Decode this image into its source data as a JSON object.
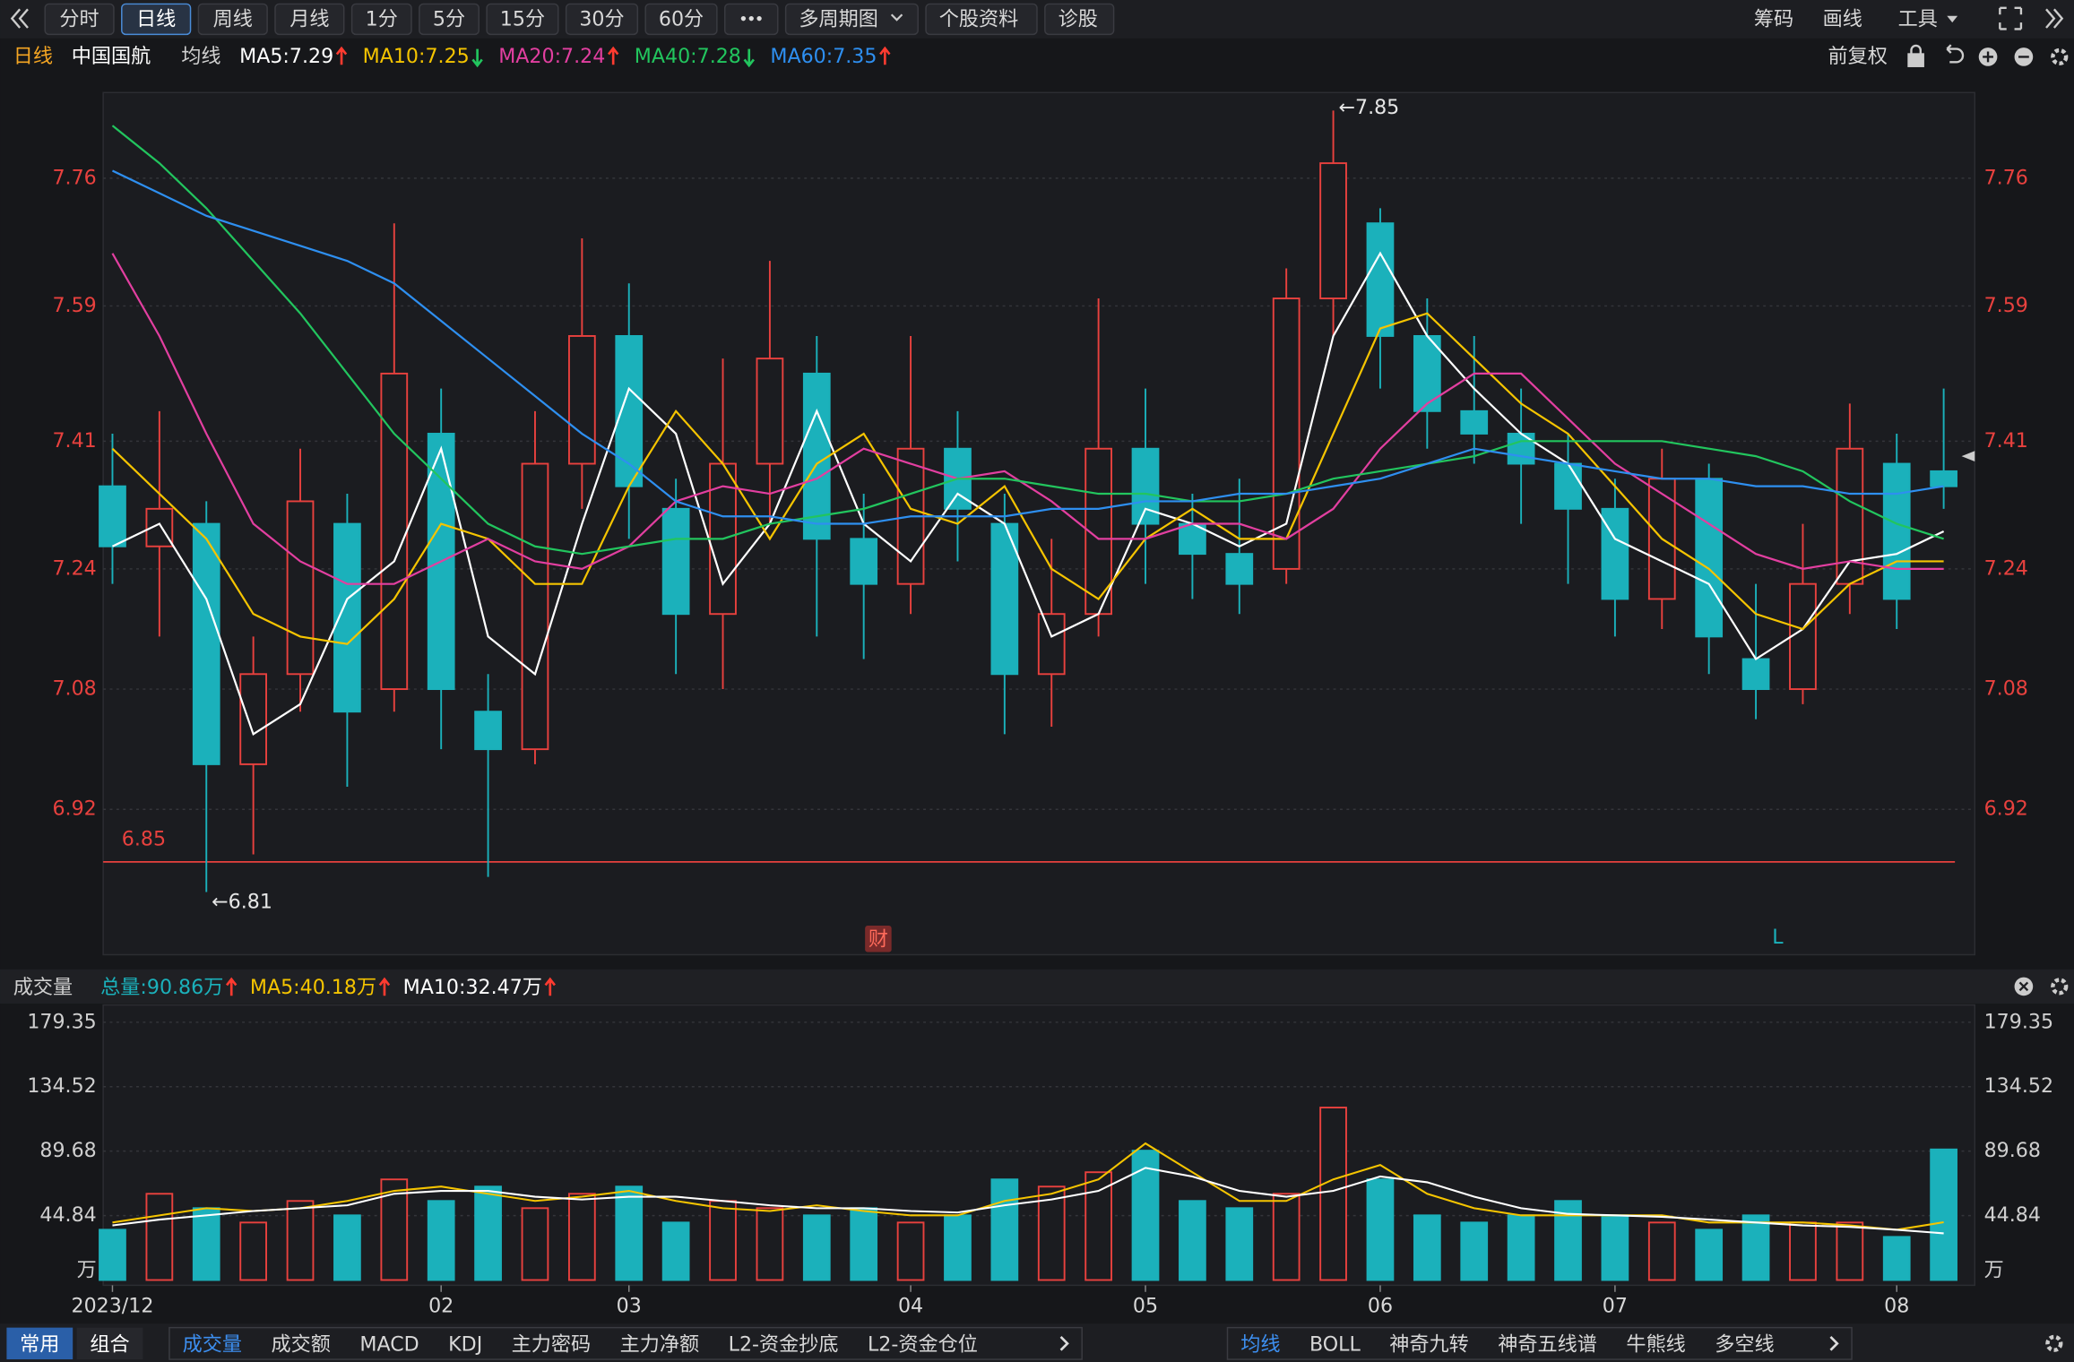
{
  "toolbar": {
    "periods": [
      "分时",
      "日线",
      "周线",
      "月线",
      "1分",
      "5分",
      "15分",
      "30分",
      "60分"
    ],
    "active": 1,
    "buttons": [
      "多周期图",
      "个股资料",
      "诊股"
    ],
    "tools": [
      "筹码",
      "画线",
      "工具"
    ],
    "adjust": "前复权"
  },
  "chart_data": [
    {
      "type": "candlestick",
      "title": "日线",
      "subtitle": "中国国航",
      "ma_label": "均线",
      "open": [
        7.35,
        7.27,
        7.3,
        6.98,
        7.1,
        7.3,
        7.08,
        7.42,
        7.05,
        7.0,
        7.38,
        7.55,
        7.32,
        7.18,
        7.38,
        7.5,
        7.28,
        7.22,
        7.4,
        7.3,
        7.1,
        7.18,
        7.4,
        7.3,
        7.26,
        7.24,
        7.6,
        7.7,
        7.55,
        7.45,
        7.42,
        7.38,
        7.32,
        7.2,
        7.36,
        7.12,
        7.08,
        7.22,
        7.38,
        7.37
      ],
      "close": [
        7.27,
        7.32,
        6.98,
        7.1,
        7.33,
        7.05,
        7.5,
        7.08,
        7.0,
        7.38,
        7.55,
        7.35,
        7.18,
        7.38,
        7.52,
        7.28,
        7.22,
        7.4,
        7.32,
        7.1,
        7.18,
        7.4,
        7.3,
        7.26,
        7.22,
        7.6,
        7.78,
        7.55,
        7.45,
        7.42,
        7.38,
        7.32,
        7.2,
        7.36,
        7.15,
        7.08,
        7.22,
        7.4,
        7.2,
        7.35
      ],
      "low": [
        7.22,
        7.15,
        6.81,
        6.86,
        7.05,
        6.95,
        7.05,
        7.0,
        6.83,
        6.98,
        7.32,
        7.28,
        7.1,
        7.08,
        7.3,
        7.15,
        7.12,
        7.18,
        7.25,
        7.02,
        7.03,
        7.15,
        7.22,
        7.2,
        7.18,
        7.22,
        7.55,
        7.48,
        7.4,
        7.38,
        7.3,
        7.22,
        7.15,
        7.16,
        7.1,
        7.04,
        7.06,
        7.18,
        7.16,
        7.32
      ],
      "high": [
        7.42,
        7.45,
        7.33,
        7.15,
        7.4,
        7.34,
        7.7,
        7.48,
        7.1,
        7.45,
        7.68,
        7.62,
        7.36,
        7.52,
        7.65,
        7.55,
        7.34,
        7.55,
        7.45,
        7.34,
        7.28,
        7.6,
        7.48,
        7.34,
        7.36,
        7.64,
        7.85,
        7.72,
        7.6,
        7.55,
        7.48,
        7.42,
        7.36,
        7.4,
        7.38,
        7.22,
        7.3,
        7.46,
        7.42,
        7.48
      ],
      "up_color": "#e8413e",
      "down_color": "#1bb1bb",
      "series": [
        {
          "name": "MA5:7.29",
          "color": "#ffffff",
          "trend": "up",
          "values": [
            7.27,
            7.3,
            7.2,
            7.02,
            7.06,
            7.2,
            7.25,
            7.4,
            7.15,
            7.1,
            7.3,
            7.48,
            7.42,
            7.22,
            7.3,
            7.45,
            7.3,
            7.25,
            7.34,
            7.3,
            7.15,
            7.18,
            7.32,
            7.3,
            7.27,
            7.3,
            7.55,
            7.66,
            7.55,
            7.48,
            7.42,
            7.38,
            7.28,
            7.25,
            7.22,
            7.12,
            7.16,
            7.25,
            7.26,
            7.29
          ]
        },
        {
          "name": "MA10:7.25",
          "color": "#f5c400",
          "trend": "down",
          "values": [
            7.4,
            7.34,
            7.28,
            7.18,
            7.15,
            7.14,
            7.2,
            7.3,
            7.28,
            7.22,
            7.22,
            7.35,
            7.45,
            7.38,
            7.28,
            7.38,
            7.42,
            7.32,
            7.3,
            7.35,
            7.24,
            7.2,
            7.28,
            7.32,
            7.28,
            7.28,
            7.42,
            7.56,
            7.58,
            7.52,
            7.46,
            7.42,
            7.35,
            7.28,
            7.24,
            7.18,
            7.16,
            7.22,
            7.25,
            7.25
          ]
        },
        {
          "name": "MA20:7.24",
          "color": "#e23fa0",
          "trend": "up",
          "values": [
            7.66,
            7.55,
            7.42,
            7.3,
            7.25,
            7.22,
            7.22,
            7.25,
            7.28,
            7.25,
            7.24,
            7.27,
            7.33,
            7.35,
            7.34,
            7.36,
            7.4,
            7.38,
            7.36,
            7.37,
            7.33,
            7.28,
            7.28,
            7.3,
            7.3,
            7.28,
            7.32,
            7.4,
            7.46,
            7.5,
            7.5,
            7.44,
            7.38,
            7.34,
            7.3,
            7.26,
            7.24,
            7.25,
            7.24,
            7.24
          ]
        },
        {
          "name": "MA40:7.28",
          "color": "#22c55e",
          "trend": "down",
          "values": [
            7.83,
            7.78,
            7.72,
            7.65,
            7.58,
            7.5,
            7.42,
            7.36,
            7.3,
            7.27,
            7.26,
            7.27,
            7.28,
            7.28,
            7.3,
            7.31,
            7.32,
            7.34,
            7.36,
            7.36,
            7.35,
            7.34,
            7.34,
            7.33,
            7.33,
            7.34,
            7.36,
            7.37,
            7.38,
            7.39,
            7.41,
            7.41,
            7.41,
            7.41,
            7.4,
            7.39,
            7.37,
            7.33,
            7.3,
            7.28
          ]
        },
        {
          "name": "MA60:7.35",
          "color": "#2e8ff0",
          "trend": "up",
          "values": [
            7.77,
            7.74,
            7.71,
            7.69,
            7.67,
            7.65,
            7.62,
            7.57,
            7.52,
            7.47,
            7.42,
            7.38,
            7.33,
            7.31,
            7.31,
            7.3,
            7.3,
            7.31,
            7.31,
            7.31,
            7.32,
            7.32,
            7.33,
            7.33,
            7.34,
            7.34,
            7.35,
            7.36,
            7.38,
            7.4,
            7.39,
            7.38,
            7.37,
            7.36,
            7.36,
            7.35,
            7.35,
            7.34,
            7.34,
            7.35
          ]
        }
      ],
      "ylim": [
        6.73,
        7.874
      ],
      "yticks": [
        6.92,
        7.08,
        7.24,
        7.41,
        7.59,
        7.76
      ],
      "grid": true,
      "hline": {
        "value": 6.85,
        "color": "#e8413e"
      },
      "annotations": [
        {
          "label": "←7.85",
          "value": 7.85,
          "x": 26
        },
        {
          "label": "←6.81",
          "value": 6.81,
          "x": 2
        }
      ],
      "markers": [
        "财",
        "L"
      ]
    },
    {
      "type": "bar",
      "title": "成交量",
      "categories": [
        "2023/12",
        null,
        null,
        null,
        null,
        null,
        null,
        "02",
        null,
        null,
        null,
        "03",
        null,
        null,
        null,
        null,
        null,
        "04",
        null,
        null,
        null,
        null,
        "05",
        null,
        null,
        null,
        null,
        "06",
        null,
        null,
        null,
        null,
        "07",
        null,
        null,
        null,
        null,
        null,
        "08",
        null
      ],
      "series": [
        {
          "name": "总量:90.86万",
          "color": "#1bb1bb",
          "trend": "up",
          "values": [
            35,
            60,
            50,
            40,
            55,
            45,
            70,
            55,
            65,
            50,
            60,
            65,
            40,
            55,
            50,
            45,
            50,
            40,
            45,
            70,
            65,
            75,
            90,
            55,
            50,
            60,
            120,
            70,
            45,
            40,
            45,
            55,
            45,
            40,
            35,
            45,
            40,
            40,
            30,
            90.86
          ]
        },
        {
          "name": "MA5:40.18万",
          "color": "#f5c400",
          "trend": "up",
          "values": [
            40,
            45,
            50,
            48,
            50,
            55,
            62,
            65,
            60,
            55,
            58,
            62,
            55,
            50,
            48,
            52,
            48,
            45,
            45,
            55,
            60,
            70,
            95,
            75,
            55,
            55,
            70,
            80,
            60,
            50,
            45,
            45,
            45,
            45,
            40,
            40,
            40,
            38,
            35,
            40.18
          ]
        },
        {
          "name": "MA10:32.47万",
          "color": "#ffffff",
          "trend": "up",
          "values": [
            38,
            42,
            45,
            48,
            50,
            52,
            60,
            62,
            62,
            58,
            56,
            58,
            58,
            55,
            52,
            50,
            50,
            48,
            47,
            52,
            56,
            62,
            78,
            72,
            62,
            58,
            62,
            72,
            68,
            58,
            50,
            46,
            45,
            44,
            42,
            40,
            38,
            37,
            35,
            32.47
          ]
        }
      ],
      "ylim": [
        0,
        188.6
      ],
      "yticks": [
        44.84,
        89.68,
        134.52,
        179.35
      ],
      "y_unit": "万",
      "grid": true
    }
  ],
  "tabs": {
    "left": [
      "常用",
      "组合"
    ],
    "left_active": 0,
    "indicators": [
      "成交量",
      "成交额",
      "MACD",
      "KDJ",
      "主力密码",
      "主力净额",
      "L2-资金抄底",
      "L2-资金仓位"
    ],
    "indicators_active": 0,
    "overlays": [
      "均线",
      "BOLL",
      "神奇九转",
      "神奇五线谱",
      "牛熊线",
      "多空线"
    ],
    "overlays_active": 0
  }
}
